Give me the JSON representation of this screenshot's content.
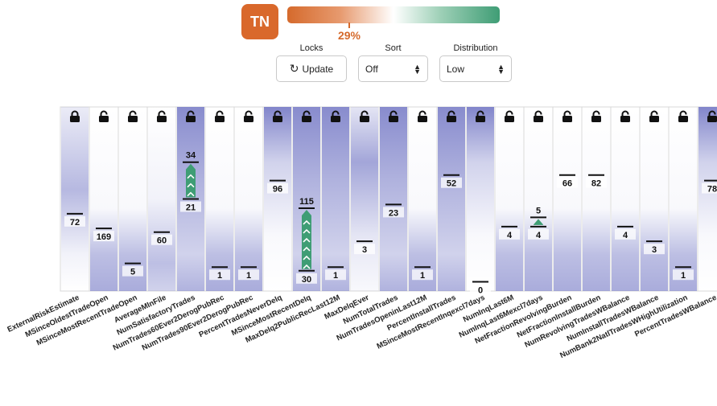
{
  "badge": {
    "text": "TN",
    "color": "#d9682b"
  },
  "progress": {
    "value": 29,
    "label": "29%",
    "color_low": "#d56a2c",
    "color_high": "#3f9d75"
  },
  "controls": {
    "locks_label": "Locks",
    "update_label": "Update",
    "sort_label": "Sort",
    "sort_value": "Off",
    "distribution_label": "Distribution",
    "distribution_value": "Low"
  },
  "colors": {
    "density": "#7b7fc8",
    "arrow": "#3f9d75",
    "highlight": "#9f9fd9"
  },
  "features": [
    {
      "name": "ExternalRiskEstimate",
      "value": "72",
      "level": 0.42,
      "locked": true,
      "dist": "dark-top"
    },
    {
      "name": "MSinceOldestTradeOpen",
      "value": "169",
      "level": 0.34,
      "locked": false,
      "dist": "bottom"
    },
    {
      "name": "MSinceMostRecentTradeOpen",
      "value": "5",
      "level": 0.15,
      "locked": false,
      "dist": "bottom"
    },
    {
      "name": "AverageMInFile",
      "value": "60",
      "level": 0.32,
      "locked": false,
      "dist": "lower"
    },
    {
      "name": "NumSatisfactoryTrades",
      "value": "21",
      "level": 0.5,
      "locked": false,
      "dist": "full",
      "target": "34",
      "target_level": 0.7
    },
    {
      "name": "NumTrades60Ever2DerogPubRec",
      "value": "1",
      "level": 0.13,
      "locked": false,
      "dist": "bottom"
    },
    {
      "name": "NumTrades90Ever2DerogPubRec",
      "value": "1",
      "level": 0.13,
      "locked": false,
      "dist": "bottom"
    },
    {
      "name": "PercentTradesNeverDelq",
      "value": "96",
      "level": 0.6,
      "locked": false,
      "dist": "top",
      "highlighted": true
    },
    {
      "name": "MSinceMostRecentDelq",
      "value": "30",
      "level": 0.11,
      "locked": false,
      "dist": "full",
      "target": "115",
      "target_level": 0.45,
      "highlighted": true
    },
    {
      "name": "MaxDelq2PublicRecLast12M",
      "value": "1",
      "level": 0.13,
      "locked": false,
      "dist": "full"
    },
    {
      "name": "MaxDelqEver",
      "value": "3",
      "level": 0.27,
      "locked": false,
      "dist": "upper"
    },
    {
      "name": "NumTotalTrades",
      "value": "23",
      "level": 0.47,
      "locked": false,
      "dist": "full"
    },
    {
      "name": "NumTradesOpeninLast12M",
      "value": "1",
      "level": 0.13,
      "locked": false,
      "dist": "bottom"
    },
    {
      "name": "PercentInstallTrades",
      "value": "52",
      "level": 0.63,
      "locked": false,
      "dist": "full"
    },
    {
      "name": "MSinceMostRecentInqexcl7days",
      "value": "0",
      "level": 0.05,
      "locked": false,
      "dist": "top"
    },
    {
      "name": "NumInqLast6M",
      "value": "4",
      "level": 0.35,
      "locked": false,
      "dist": "bottom"
    },
    {
      "name": "NumInqLast6Mexcl7days",
      "value": "4",
      "level": 0.35,
      "locked": false,
      "dist": "bottom",
      "target": "5",
      "target_level": 0.4
    },
    {
      "name": "NetFractionRevolvingBurden",
      "value": "66",
      "level": 0.63,
      "locked": false,
      "dist": "bottom"
    },
    {
      "name": "NetFractionInstallBurden",
      "value": "82",
      "level": 0.63,
      "locked": false,
      "dist": "bottom"
    },
    {
      "name": "NumRevolvingTradesWBalance",
      "value": "4",
      "level": 0.35,
      "locked": false,
      "dist": "bottom"
    },
    {
      "name": "NumInstallTradesWBalance",
      "value": "3",
      "level": 0.27,
      "locked": false,
      "dist": "bottom"
    },
    {
      "name": "NumBank2NatlTradesWHighUtilization",
      "value": "1",
      "level": 0.13,
      "locked": false,
      "dist": "bottom"
    },
    {
      "name": "PercentTradesWBalance",
      "value": "78",
      "level": 0.6,
      "locked": false,
      "dist": "top"
    }
  ]
}
